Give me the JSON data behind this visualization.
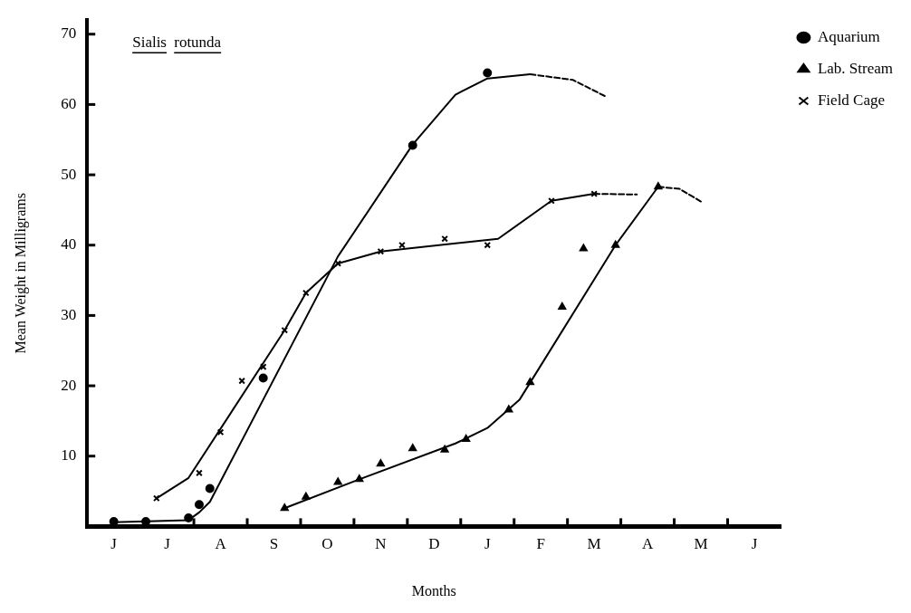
{
  "chart_data": {
    "type": "line",
    "title": "Sialis rotunda",
    "xlabel": "Months",
    "ylabel": "Mean Weight in Milligrams",
    "legend": "top right",
    "grid": false,
    "categories": [
      null,
      null,
      "J",
      null,
      null,
      null,
      null,
      "J",
      null,
      null,
      null,
      null,
      "A",
      null,
      null,
      null,
      null,
      "S",
      null,
      null,
      null,
      null,
      "O",
      null,
      null,
      null,
      null,
      "N",
      null,
      null,
      null,
      null,
      "D",
      null,
      null,
      null,
      null,
      "J",
      null,
      null,
      null,
      null,
      "F",
      null,
      null,
      null,
      null,
      "M",
      null,
      null,
      null,
      null,
      "A",
      null,
      null,
      null,
      null,
      "M",
      null,
      null,
      null,
      null,
      "J",
      null,
      null
    ],
    "ylim": [
      0,
      72
    ],
    "yticks": [
      10,
      20,
      30,
      40,
      50,
      60,
      70
    ],
    "series": [
      {
        "name": "Aquarium",
        "type": "scatter",
        "marker": "circle",
        "color": "#000000",
        "values": [
          null,
          null,
          0.7,
          null,
          null,
          0.7,
          null,
          null,
          null,
          1.2,
          3.1,
          5.4,
          null,
          null,
          null,
          null,
          21.1,
          null,
          null,
          null,
          null,
          null,
          null,
          null,
          null,
          null,
          null,
          null,
          null,
          null,
          54.2,
          null,
          null,
          null,
          null,
          null,
          null,
          64.5,
          null,
          null,
          null,
          null,
          null,
          null,
          null,
          null,
          null,
          null,
          null,
          null,
          null,
          null,
          null,
          null,
          null,
          null,
          null,
          null,
          null,
          null,
          null,
          null,
          null,
          null,
          null
        ]
      },
      {
        "name": "Lab. Stream",
        "type": "scatter",
        "marker": "triangle",
        "color": "#000000",
        "values": [
          null,
          null,
          null,
          null,
          null,
          null,
          null,
          null,
          null,
          null,
          null,
          null,
          null,
          null,
          null,
          null,
          null,
          null,
          2.6,
          null,
          4.2,
          null,
          null,
          6.3,
          null,
          6.7,
          null,
          8.9,
          null,
          null,
          11.1,
          null,
          null,
          10.9,
          null,
          12.4,
          null,
          null,
          null,
          16.6,
          null,
          20.5,
          null,
          null,
          31.2,
          null,
          39.5,
          null,
          null,
          40,
          null,
          null,
          null,
          48.3,
          null,
          null,
          null,
          null,
          null,
          null,
          null,
          null,
          null,
          null,
          null
        ]
      },
      {
        "name": "Field Cage",
        "type": "scatter",
        "marker": "cross",
        "color": "#000000",
        "values": [
          null,
          null,
          null,
          null,
          null,
          null,
          4.0,
          null,
          null,
          null,
          7.6,
          null,
          13.4,
          null,
          20.7,
          null,
          22.7,
          null,
          27.9,
          null,
          33.2,
          null,
          null,
          37.4,
          null,
          null,
          null,
          39.1,
          null,
          40,
          null,
          null,
          null,
          40.9,
          null,
          null,
          null,
          40,
          null,
          null,
          null,
          null,
          null,
          46.3,
          null,
          null,
          null,
          47.3,
          null,
          null,
          null,
          null,
          null,
          null,
          null,
          null,
          null,
          null,
          null,
          null,
          null,
          null,
          null,
          null,
          null
        ]
      },
      {
        "marker": "none",
        "line_style": "solid",
        "color": "#000000",
        "values": [
          null,
          null,
          0.6,
          null,
          null,
          null,
          null,
          null,
          null,
          0.9,
          2,
          3.5,
          null,
          null,
          null,
          null,
          null,
          null,
          null,
          null,
          null,
          null,
          null,
          38.4,
          null,
          null,
          null,
          null,
          null,
          null,
          54.3,
          null,
          null,
          null,
          61.4,
          null,
          null,
          63.7,
          null,
          null,
          null,
          64.3,
          null,
          null,
          null,
          null,
          null,
          null,
          null,
          null,
          null,
          null,
          null,
          null,
          null,
          null,
          null,
          null,
          null,
          null,
          null,
          null,
          null,
          null,
          null
        ]
      },
      {
        "marker": "none",
        "line_style": "dashed",
        "color": "#000000",
        "values": [
          null,
          null,
          null,
          null,
          null,
          null,
          null,
          null,
          null,
          null,
          null,
          null,
          null,
          null,
          null,
          null,
          null,
          null,
          null,
          null,
          null,
          null,
          null,
          null,
          null,
          null,
          null,
          null,
          null,
          null,
          null,
          null,
          null,
          null,
          null,
          null,
          null,
          null,
          null,
          null,
          null,
          64.3,
          null,
          null,
          null,
          63.5,
          null,
          null,
          61.2,
          null,
          null,
          null,
          null,
          null,
          null,
          null,
          null,
          null,
          null,
          null,
          null,
          null,
          null,
          null,
          null
        ]
      },
      {
        "marker": "none",
        "line_style": "solid",
        "color": "#000000",
        "values": [
          null,
          null,
          null,
          null,
          null,
          null,
          null,
          null,
          null,
          null,
          null,
          null,
          null,
          null,
          null,
          null,
          null,
          null,
          2.6,
          null,
          null,
          null,
          null,
          null,
          null,
          6.7,
          null,
          null,
          null,
          null,
          null,
          null,
          null,
          null,
          11.8,
          null,
          null,
          14,
          null,
          null,
          18,
          null,
          null,
          null,
          null,
          null,
          null,
          null,
          null,
          40,
          null,
          null,
          null,
          48.3,
          null,
          null,
          null,
          null,
          null,
          null,
          null,
          null,
          null,
          null,
          null
        ]
      },
      {
        "marker": "none",
        "line_style": "dashed",
        "color": "#000000",
        "values": [
          null,
          null,
          null,
          null,
          null,
          null,
          null,
          null,
          null,
          null,
          null,
          null,
          null,
          null,
          null,
          null,
          null,
          null,
          null,
          null,
          null,
          null,
          null,
          null,
          null,
          null,
          null,
          null,
          null,
          null,
          null,
          null,
          null,
          null,
          null,
          null,
          null,
          null,
          null,
          null,
          null,
          null,
          null,
          null,
          null,
          null,
          null,
          null,
          null,
          null,
          null,
          null,
          null,
          48.3,
          null,
          48,
          null,
          46.2,
          null,
          null,
          null,
          null,
          null,
          null,
          null
        ]
      },
      {
        "marker": "none",
        "line_style": "solid",
        "color": "#000000",
        "values": [
          null,
          null,
          null,
          null,
          null,
          null,
          4.0,
          null,
          null,
          6.9,
          null,
          null,
          null,
          null,
          null,
          null,
          null,
          null,
          27.9,
          null,
          33.2,
          null,
          null,
          37.4,
          null,
          null,
          null,
          39.1,
          null,
          null,
          null,
          null,
          null,
          null,
          null,
          null,
          null,
          null,
          40.9,
          null,
          null,
          null,
          null,
          46.3,
          null,
          null,
          null,
          47.3,
          null,
          null,
          null,
          null,
          null,
          null,
          null,
          null,
          null,
          null,
          null,
          null,
          null,
          null,
          null,
          null,
          null
        ]
      },
      {
        "marker": "none",
        "line_style": "dashed",
        "color": "#000000",
        "values": [
          null,
          null,
          null,
          null,
          null,
          null,
          null,
          null,
          null,
          null,
          null,
          null,
          null,
          null,
          null,
          null,
          null,
          null,
          null,
          null,
          null,
          null,
          null,
          null,
          null,
          null,
          null,
          null,
          null,
          null,
          null,
          null,
          null,
          null,
          null,
          null,
          null,
          null,
          null,
          null,
          null,
          null,
          null,
          null,
          null,
          null,
          null,
          47.3,
          null,
          null,
          null,
          47.2,
          null,
          null,
          null,
          null,
          null,
          null,
          null,
          null,
          null,
          null,
          null,
          null,
          null
        ]
      }
    ]
  }
}
